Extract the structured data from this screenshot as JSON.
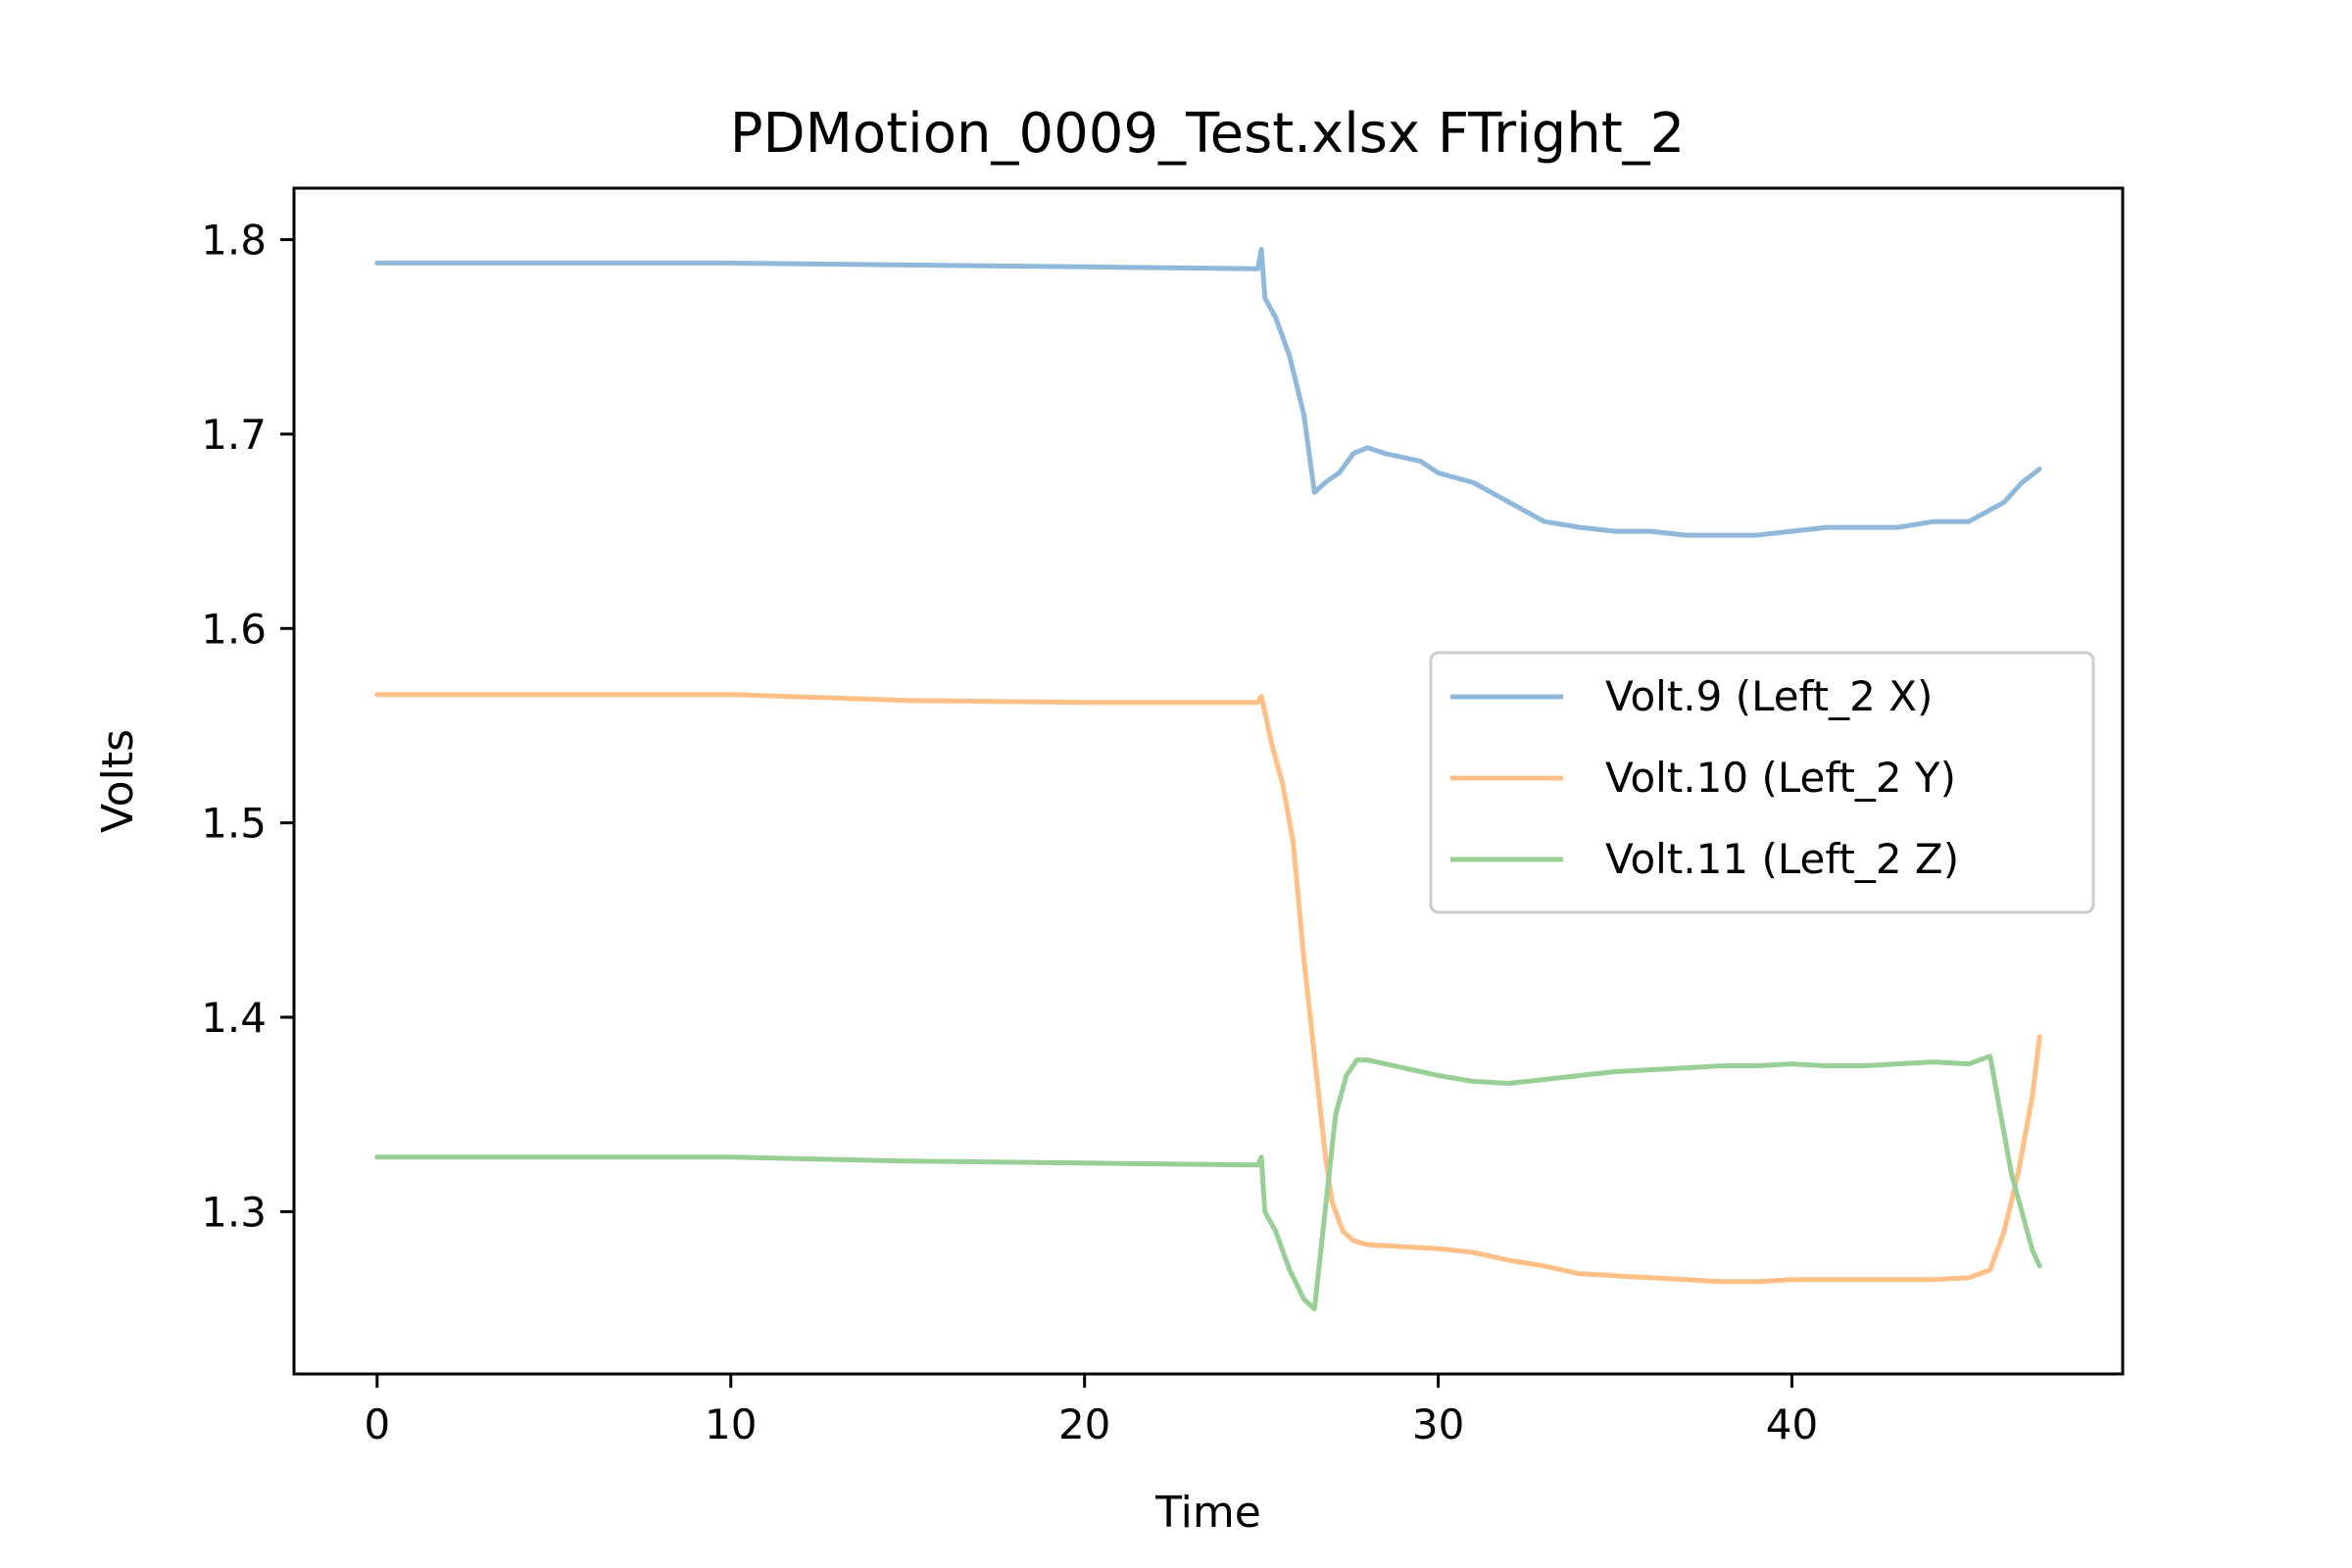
{
  "chart_data": {
    "type": "line",
    "title": "PDMotion_0009_Test.xlsx FTright_2",
    "xlabel": "Time",
    "ylabel": "Volts",
    "xlim": [
      -2.35,
      49.35
    ],
    "ylim": [
      1.2165,
      1.8265
    ],
    "xticks": [
      0,
      10,
      20,
      30,
      40
    ],
    "yticks": [
      1.3,
      1.4,
      1.5,
      1.6,
      1.7,
      1.8
    ],
    "xtick_labels": [
      "0",
      "10",
      "20",
      "30",
      "40"
    ],
    "ytick_labels": [
      "1.3",
      "1.4",
      "1.5",
      "1.6",
      "1.7",
      "1.8"
    ],
    "grid": false,
    "legend_position": "center-right",
    "series": [
      {
        "name": "Volt.9 (Left_2 X)",
        "color": "#8fb8da",
        "x": [
          0,
          5,
          10,
          15,
          20,
          24.9,
          25.0,
          25.1,
          25.4,
          25.8,
          26.2,
          26.5,
          26.8,
          27.2,
          27.6,
          28.0,
          28.5,
          29.0,
          29.5,
          30.0,
          31.0,
          32.0,
          33.0,
          34.0,
          35.0,
          36.0,
          37.0,
          38.0,
          39.0,
          40.0,
          41.0,
          42.0,
          43.0,
          44.0,
          45.0,
          45.5,
          46.0,
          46.5,
          47.0
        ],
        "y": [
          1.788,
          1.788,
          1.788,
          1.787,
          1.786,
          1.785,
          1.795,
          1.77,
          1.76,
          1.74,
          1.71,
          1.67,
          1.675,
          1.68,
          1.69,
          1.693,
          1.69,
          1.688,
          1.686,
          1.68,
          1.675,
          1.665,
          1.655,
          1.652,
          1.65,
          1.65,
          1.648,
          1.648,
          1.648,
          1.65,
          1.652,
          1.652,
          1.652,
          1.655,
          1.655,
          1.66,
          1.665,
          1.675,
          1.682
        ]
      },
      {
        "name": "Volt.10 (Left_2 Y)",
        "color": "#ffbf86",
        "x": [
          0,
          5,
          10,
          15,
          20,
          24.9,
          25.0,
          25.3,
          25.6,
          25.9,
          26.2,
          26.5,
          26.8,
          27.0,
          27.3,
          27.6,
          28.0,
          29.0,
          30.0,
          31.0,
          32.0,
          33.0,
          34.0,
          35.0,
          36.0,
          37.0,
          38.0,
          39.0,
          40.0,
          41.0,
          42.0,
          43.0,
          44.0,
          45.0,
          45.6,
          46.0,
          46.4,
          46.8,
          47.0
        ],
        "y": [
          1.566,
          1.566,
          1.566,
          1.563,
          1.562,
          1.562,
          1.565,
          1.54,
          1.52,
          1.49,
          1.43,
          1.38,
          1.33,
          1.305,
          1.29,
          1.285,
          1.283,
          1.282,
          1.281,
          1.279,
          1.275,
          1.272,
          1.268,
          1.267,
          1.266,
          1.265,
          1.264,
          1.264,
          1.265,
          1.265,
          1.265,
          1.265,
          1.265,
          1.266,
          1.27,
          1.29,
          1.32,
          1.36,
          1.39
        ]
      },
      {
        "name": "Volt.11 (Left_2 Z)",
        "color": "#98cf94",
        "x": [
          0,
          5,
          10,
          15,
          20,
          24.9,
          25.0,
          25.1,
          25.4,
          25.8,
          26.2,
          26.5,
          26.8,
          27.1,
          27.4,
          27.7,
          28.0,
          28.5,
          29.0,
          29.5,
          30.0,
          31.0,
          32.0,
          33.0,
          34.0,
          35.0,
          36.0,
          37.0,
          38.0,
          39.0,
          40.0,
          41.0,
          42.0,
          43.0,
          44.0,
          45.0,
          45.6,
          45.9,
          46.2,
          46.5,
          46.8,
          47.0
        ],
        "y": [
          1.328,
          1.328,
          1.328,
          1.326,
          1.325,
          1.324,
          1.328,
          1.3,
          1.29,
          1.27,
          1.255,
          1.25,
          1.3,
          1.35,
          1.37,
          1.378,
          1.378,
          1.376,
          1.374,
          1.372,
          1.37,
          1.367,
          1.366,
          1.368,
          1.37,
          1.372,
          1.373,
          1.374,
          1.375,
          1.375,
          1.376,
          1.375,
          1.375,
          1.376,
          1.377,
          1.376,
          1.38,
          1.35,
          1.32,
          1.3,
          1.28,
          1.272
        ]
      }
    ]
  }
}
